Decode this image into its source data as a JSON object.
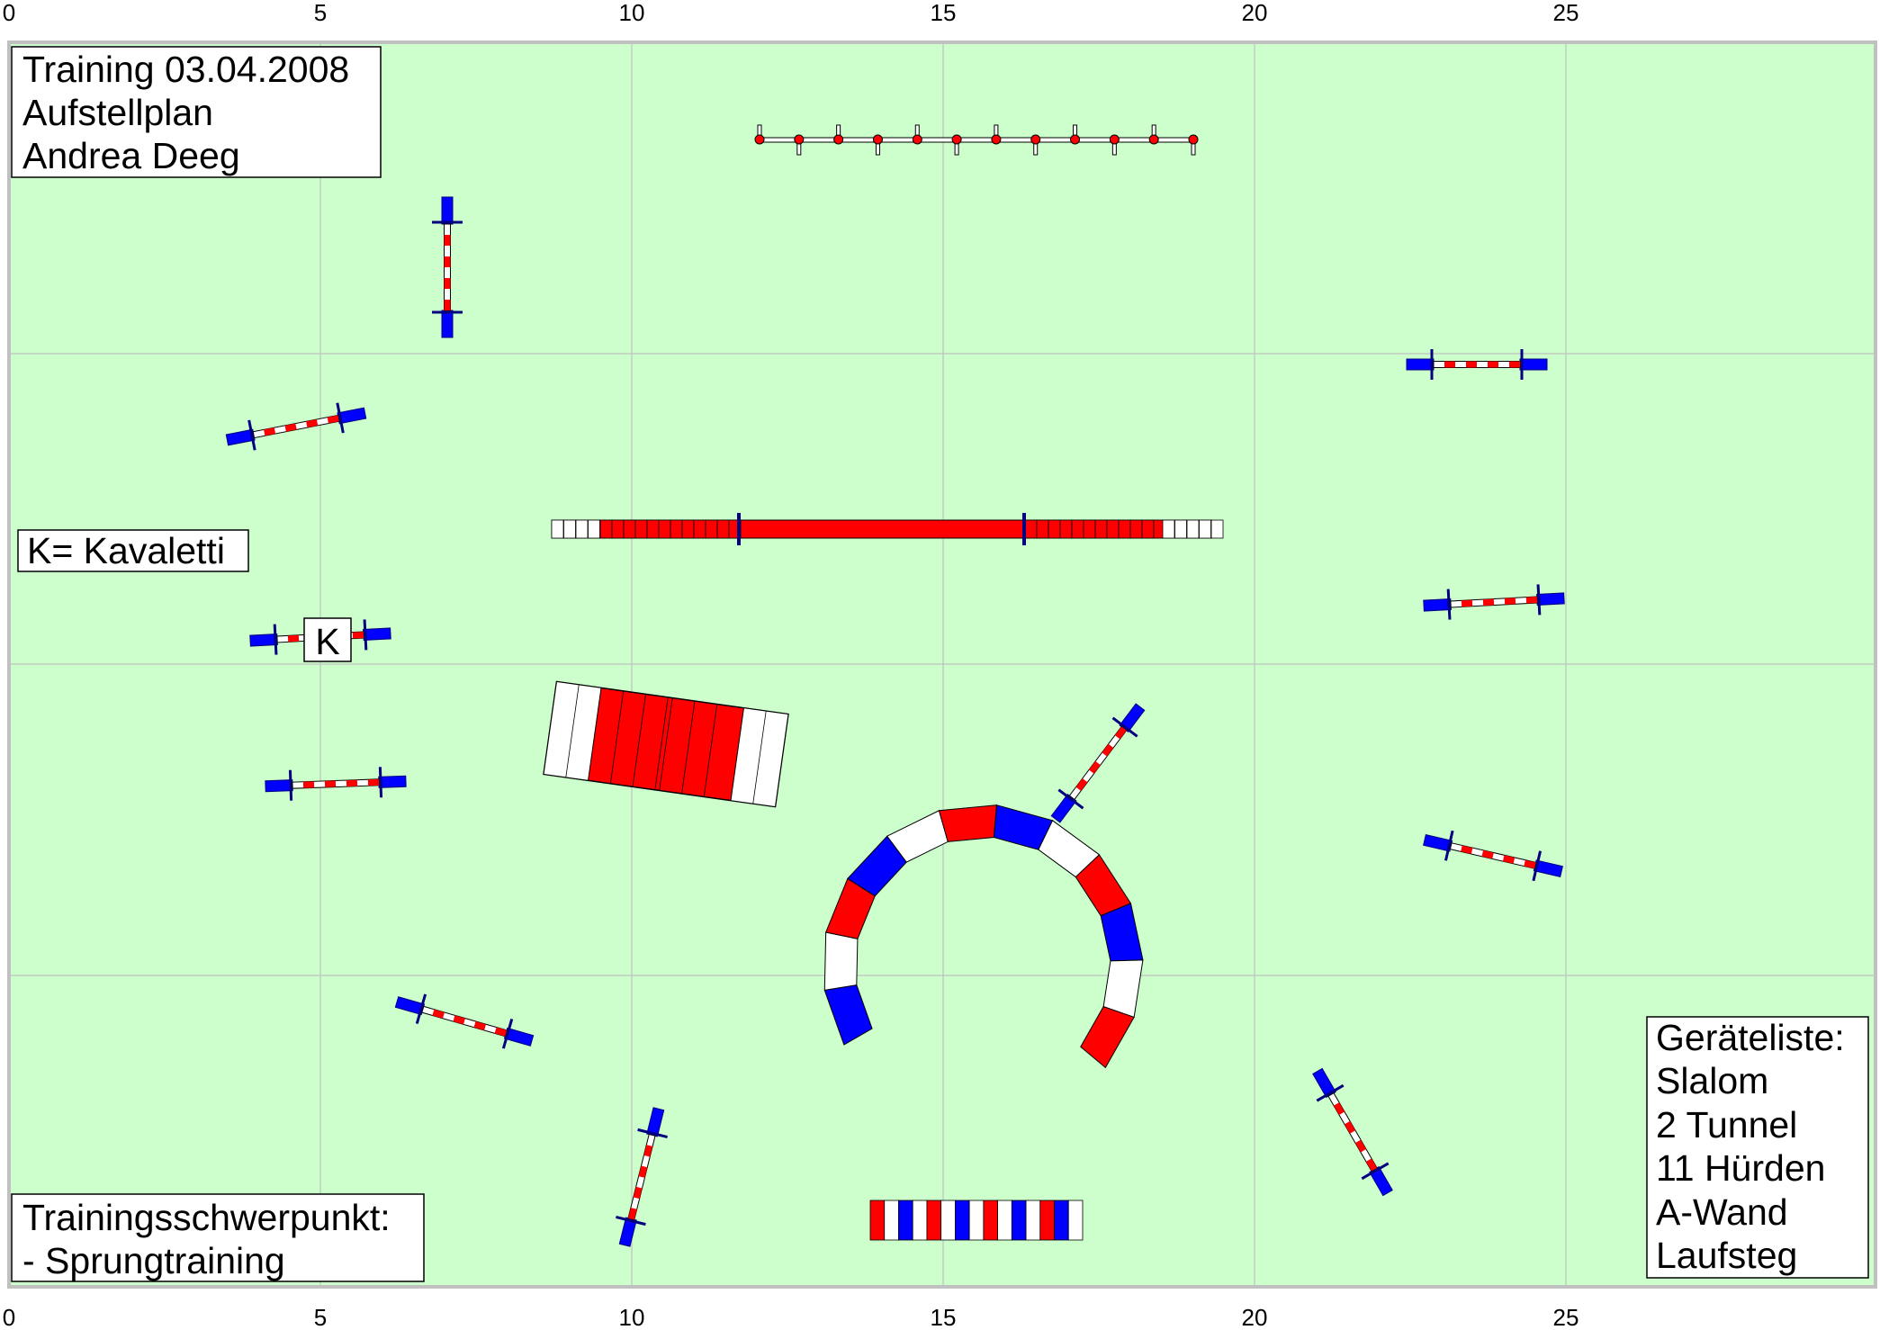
{
  "info_box": {
    "lines": [
      "Training 03.04.2008",
      "Aufstellplan",
      "Andrea Deeg"
    ]
  },
  "legend_box": {
    "text": "K= Kavaletti"
  },
  "kavaletti_label": "K",
  "focus_box": {
    "lines": [
      "Trainingsschwerpunkt:",
      "- Sprungtraining"
    ]
  },
  "equipment_box": {
    "lines": [
      "Geräteliste:",
      "Slalom",
      "2 Tunnel",
      "11 Hürden",
      "A-Wand",
      "Laufsteg"
    ]
  },
  "axis": {
    "ticks": [
      "0",
      "5",
      "10",
      "15",
      "20",
      "25"
    ]
  },
  "colors": {
    "field": "#ccffcc",
    "grid": "#c0c0c0",
    "border": "#c0c0c0",
    "hurdle_post": "#0000ff",
    "hurdle_bar": "#ff0000",
    "stripe_white": "#ffffff",
    "outline": "#000000",
    "post_dark": "#000080",
    "tunnel_blue": "#0000ff",
    "tunnel_red": "#ff0000"
  }
}
